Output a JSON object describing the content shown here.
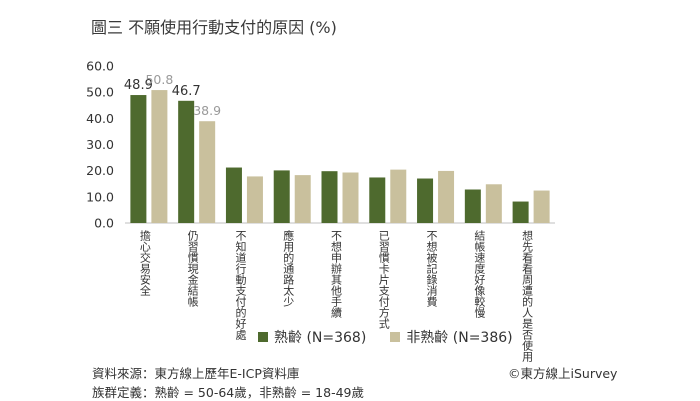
{
  "title": "圖三 不願使用行動支付的原因 (%)",
  "legend": {
    "series1": "熟齡 (N=368)",
    "series2": "非熟齡 (N=386)"
  },
  "footer": {
    "source": "資料來源：東方線上歷年E-ICP資料庫",
    "definition": "族群定義：熟齡 = 50-64歲，非熟齡 = 18-49歲",
    "credit": "©東方線上iSurvey"
  },
  "colors": {
    "series1": "#4e6a2e",
    "series2": "#c9c09d",
    "axis": "#bfbfbf",
    "label_series2": "#9a9a9a"
  },
  "chart_data": {
    "type": "bar",
    "title": "圖三 不願使用行動支付的原因 (%)",
    "categories": [
      "擔心交易安全",
      "仍習慣現金結帳",
      "不知道行動支付的好處",
      "應用的通路太少",
      "不想申辦其他手續",
      "已習慣卡片支付方式",
      "不想被記錄消費",
      "結帳速度好像較慢",
      "想先看看周遭的人是否使用"
    ],
    "series": [
      {
        "name": "熟齡 (N=368)",
        "values": [
          48.9,
          46.7,
          21.2,
          20.1,
          19.8,
          17.4,
          17.0,
          12.8,
          8.2
        ]
      },
      {
        "name": "非熟齡 (N=386)",
        "values": [
          50.8,
          38.9,
          17.8,
          18.3,
          19.3,
          20.4,
          19.9,
          14.8,
          12.4
        ]
      }
    ],
    "data_labels": [
      {
        "series": 0,
        "index": 0,
        "text": "48.9"
      },
      {
        "series": 1,
        "index": 0,
        "text": "50.8"
      },
      {
        "series": 0,
        "index": 1,
        "text": "46.7"
      },
      {
        "series": 1,
        "index": 1,
        "text": "38.9"
      }
    ],
    "y_ticks": [
      "0.0",
      "10.0",
      "20.0",
      "30.0",
      "40.0",
      "50.0",
      "60.0"
    ],
    "ylim": [
      0,
      60
    ],
    "grid": false,
    "legend_position": "bottom"
  }
}
